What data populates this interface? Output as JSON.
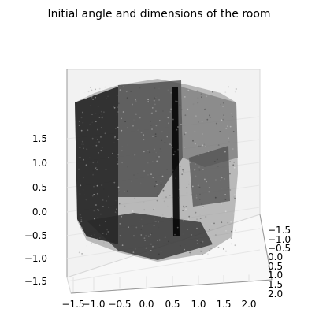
{
  "chart_data": {
    "type": "scatter",
    "title": "Initial angle and dimensions of the room",
    "projection": "3d",
    "xlabel": "",
    "ylabel": "",
    "zlabel": "",
    "grid": true,
    "x_ticks": [
      "−1.5",
      "−1.0",
      "−0.5",
      "0.0",
      "0.5",
      "1.0",
      "1.5",
      "2.0"
    ],
    "y_ticks": [
      "−1.5",
      "−1.0",
      "−0.5",
      "0.0",
      "0.5",
      "1.0",
      "1.5",
      "2.0"
    ],
    "z_ticks": [
      "−1.5",
      "−1.0",
      "−0.5",
      "0.0",
      "0.5",
      "1.0",
      "1.5"
    ],
    "xlim": [
      -1.7,
      2.1
    ],
    "ylim": [
      -1.8,
      2.0
    ],
    "zlim": [
      -1.6,
      1.8
    ],
    "series": [
      {
        "values": [],
        "description_points": "dense grey/black point cloud of a room (walls, furniture)",
        "color": "#000000"
      }
    ]
  }
}
